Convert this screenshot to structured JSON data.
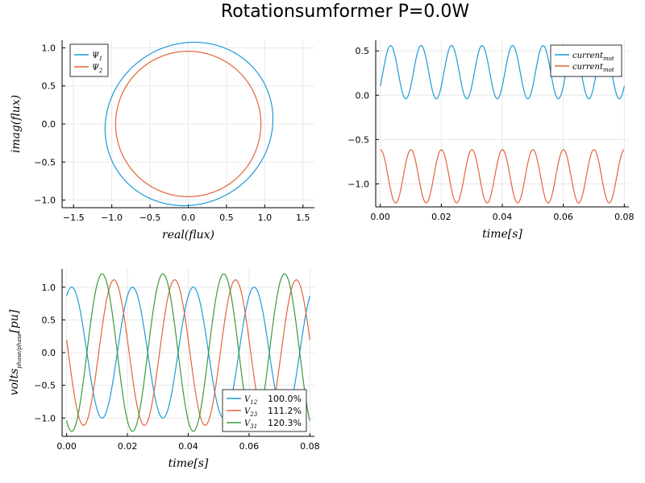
{
  "figure": {
    "title": "Rotationsumformer  P=0.0W"
  },
  "colors": {
    "c1": "#1f9ad8",
    "c2": "#e2643a",
    "c3": "#3a9a3a"
  },
  "chart_data": [
    {
      "type": "line",
      "panel": "flux",
      "title": "",
      "xlabel": "real(flux)",
      "ylabel": "imag(flux)",
      "xlim": [
        -1.65,
        1.65
      ],
      "ylim": [
        -1.1,
        1.1
      ],
      "xticks": [
        -1.5,
        -1.0,
        -0.5,
        0.0,
        0.5,
        1.0,
        1.5
      ],
      "xtick_labels": [
        "−1.5",
        "−1.0",
        "−0.5",
        "0.0",
        "0.5",
        "1.0",
        "1.5"
      ],
      "yticks": [
        -1.0,
        -0.5,
        0.0,
        0.5,
        1.0
      ],
      "ytick_labels": [
        "−1.0",
        "−0.5",
        "0.0",
        "0.5",
        "1.0"
      ],
      "grid": true,
      "legend": "top-left",
      "series": [
        {
          "name": "Ψ",
          "sub": "1",
          "color": "#1f9ad8",
          "shape": "ellipse",
          "center": [
            0.01,
            0.0
          ],
          "semi_major": 1.12,
          "semi_minor": 1.05,
          "tilt_deg": 35
        },
        {
          "name": "Ψ",
          "sub": "2",
          "color": "#e2643a",
          "shape": "ellipse",
          "center": [
            0.0,
            0.0
          ],
          "semi_major": 0.95,
          "semi_minor": 0.955,
          "tilt_deg": 0
        }
      ]
    },
    {
      "type": "line",
      "panel": "current",
      "title": "",
      "xlabel": "time[s]",
      "ylabel": "",
      "xlim": [
        -0.0015,
        0.0815
      ],
      "ylim": [
        -1.26,
        0.62
      ],
      "xticks": [
        0.0,
        0.02,
        0.04,
        0.06,
        0.08
      ],
      "xtick_labels": [
        "0.00",
        "0.02",
        "0.04",
        "0.06",
        "0.08"
      ],
      "yticks": [
        -1.0,
        -0.5,
        0.0,
        0.5
      ],
      "ytick_labels": [
        "−1.0",
        "−0.5",
        "0.0",
        "0.5"
      ],
      "grid": true,
      "legend": "top-right",
      "frequency_hz": 100,
      "series": [
        {
          "name": "current",
          "sub": "mot",
          "color": "#1f9ad8",
          "offset": 0.26,
          "amplitude": 0.3,
          "phase_deg": 0
        },
        {
          "name": "current",
          "sub": "mot",
          "color": "#e2643a",
          "offset": -0.915,
          "amplitude": 0.3,
          "phase_deg": 120
        }
      ]
    },
    {
      "type": "line",
      "panel": "voltage",
      "title": "",
      "xlabel": "time[s]",
      "ylabel": "volts",
      "ylabel_sub": "phase/phase",
      "ylabel_suffix": "[pu]",
      "xlim": [
        -0.0015,
        0.0815
      ],
      "ylim": [
        -1.28,
        1.28
      ],
      "xticks": [
        0.0,
        0.02,
        0.04,
        0.06,
        0.08
      ],
      "xtick_labels": [
        "0.00",
        "0.02",
        "0.04",
        "0.06",
        "0.08"
      ],
      "yticks": [
        -1.0,
        -0.5,
        0.0,
        0.5,
        1.0
      ],
      "ytick_labels": [
        "−1.0",
        "−0.5",
        "0.0",
        "0.5",
        "1.0"
      ],
      "grid": true,
      "legend": "bottom-right",
      "frequency_hz": 50,
      "series": [
        {
          "name": "V",
          "sub": "12",
          "pct": "100.0%",
          "color": "#1f9ad8",
          "amplitude": 1.0,
          "phase_deg": 60
        },
        {
          "name": "V",
          "sub": "23",
          "pct": "111.2%",
          "color": "#e2643a",
          "amplitude": 1.112,
          "phase_deg": 170
        },
        {
          "name": "V",
          "sub": "31",
          "pct": "120.3%",
          "color": "#3a9a3a",
          "amplitude": 1.203,
          "phase_deg": -120
        }
      ]
    }
  ]
}
